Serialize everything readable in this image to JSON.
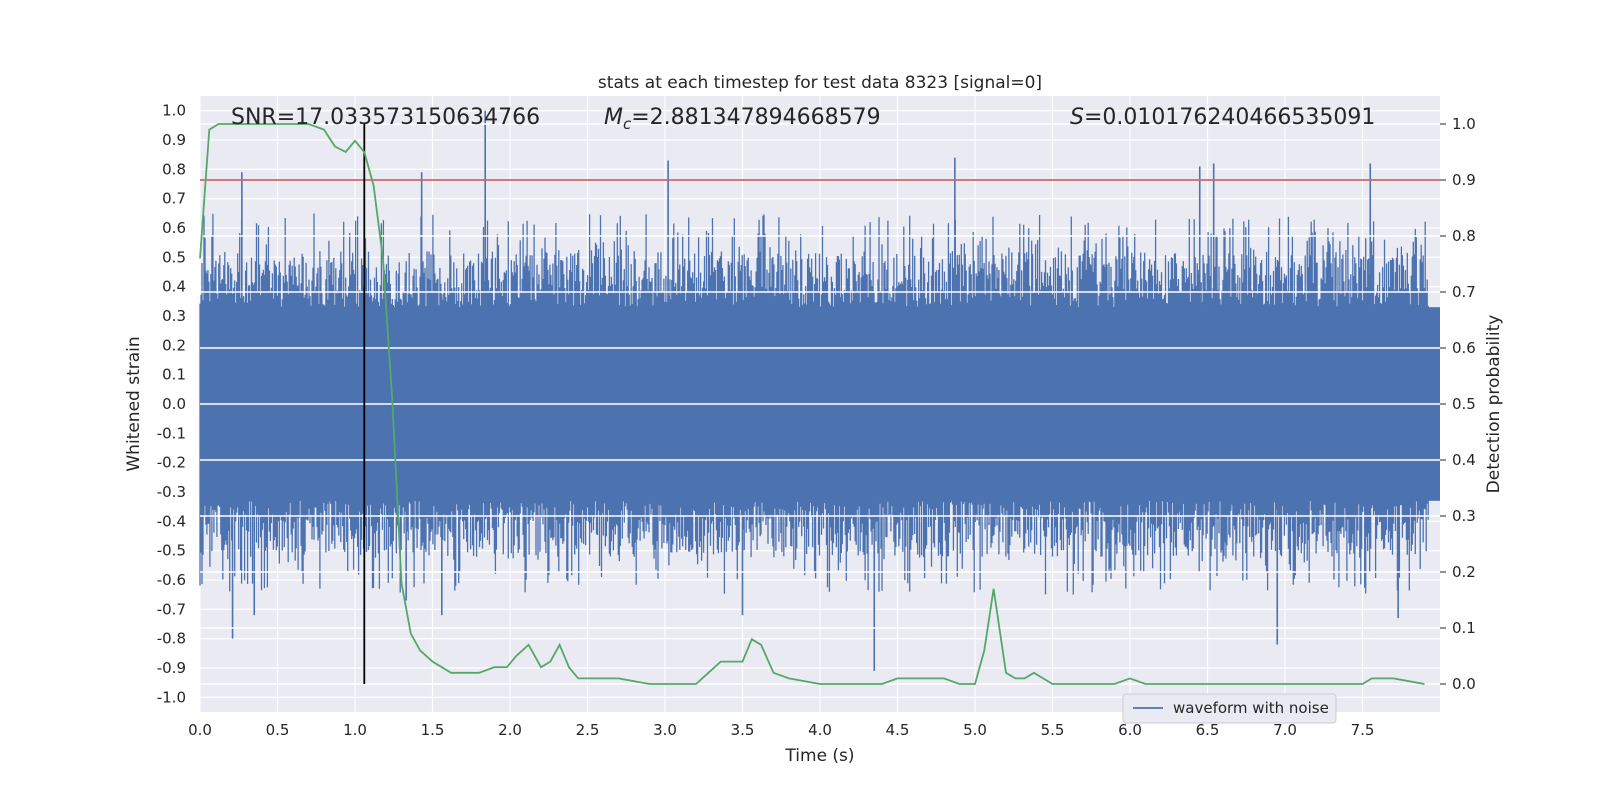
{
  "chart_data": {
    "type": "line",
    "title": "stats at each timestep for test data 8323 [signal=0]",
    "xlabel": "Time (s)",
    "ylabel": "Whitened strain",
    "y2label": "Detection probability",
    "xlim": [
      0.0,
      8.0
    ],
    "ylim": [
      -1.05,
      1.05
    ],
    "y2lim": [
      -0.05,
      1.05
    ],
    "x_ticks": [
      "0.0",
      "0.5",
      "1.0",
      "1.5",
      "2.0",
      "2.5",
      "3.0",
      "3.5",
      "4.0",
      "4.5",
      "5.0",
      "5.5",
      "6.0",
      "6.5",
      "7.0",
      "7.5"
    ],
    "y_ticks": [
      "1.0",
      "0.9",
      "0.8",
      "0.7",
      "0.6",
      "0.5",
      "0.4",
      "0.3",
      "0.2",
      "0.1",
      "0.0",
      "-0.1",
      "-0.2",
      "-0.3",
      "-0.4",
      "-0.5",
      "-0.6",
      "-0.7",
      "-0.8",
      "-0.9",
      "-1.0"
    ],
    "y2_ticks": [
      "1.0",
      "0.9",
      "0.8",
      "0.7",
      "0.6",
      "0.5",
      "0.4",
      "0.3",
      "0.2",
      "0.1",
      "0.0"
    ],
    "grid": true,
    "legend_position": "lower-right",
    "annotations": {
      "snr": "SNR=17.033573150634766",
      "mc_prefix": "M",
      "mc_sub": "c",
      "mc_value": "=2.881347894668579",
      "s_prefix": "S",
      "s_value": "=0.010176240466535091"
    },
    "threshold_line": {
      "y2": 0.9,
      "color": "#c44e52"
    },
    "detection_marker_x": 1.06,
    "series": [
      {
        "name": "waveform with noise",
        "color": "#4c72b0",
        "description_envelope": {
          "core_amplitude": 0.33,
          "typical_peak": 0.55,
          "max_peaks": [
            {
              "x": 0.27,
              "y": 0.79
            },
            {
              "x": 1.43,
              "y": 0.79
            },
            {
              "x": 1.84,
              "y": 1.0
            },
            {
              "x": 3.02,
              "y": 0.83
            },
            {
              "x": 4.87,
              "y": 0.84
            },
            {
              "x": 6.45,
              "y": 0.81
            },
            {
              "x": 6.54,
              "y": 0.82
            },
            {
              "x": 7.55,
              "y": 0.82
            }
          ],
          "min_peaks": [
            {
              "x": 0.21,
              "y": -0.8
            },
            {
              "x": 0.35,
              "y": -0.72
            },
            {
              "x": 1.33,
              "y": -0.67
            },
            {
              "x": 1.56,
              "y": -0.72
            },
            {
              "x": 3.5,
              "y": -0.72
            },
            {
              "x": 4.35,
              "y": -0.91
            },
            {
              "x": 6.95,
              "y": -0.82
            },
            {
              "x": 7.73,
              "y": -0.73
            }
          ]
        }
      },
      {
        "name": "",
        "color": "#55a868",
        "axis": "right",
        "x": [
          0.0,
          0.06,
          0.12,
          0.2,
          0.3,
          0.4,
          0.5,
          0.6,
          0.7,
          0.8,
          0.87,
          0.94,
          1.0,
          1.06,
          1.12,
          1.18,
          1.24,
          1.3,
          1.36,
          1.42,
          1.5,
          1.56,
          1.62,
          1.7,
          1.8,
          1.9,
          1.98,
          2.04,
          2.12,
          2.2,
          2.26,
          2.32,
          2.38,
          2.44,
          2.52,
          2.7,
          2.9,
          3.1,
          3.2,
          3.28,
          3.36,
          3.42,
          3.5,
          3.56,
          3.62,
          3.7,
          3.8,
          4.0,
          4.2,
          4.4,
          4.5,
          4.6,
          4.7,
          4.8,
          4.9,
          5.0,
          5.06,
          5.12,
          5.2,
          5.26,
          5.32,
          5.38,
          5.44,
          5.5,
          5.7,
          5.9,
          6.0,
          6.1,
          6.2,
          6.4,
          6.7,
          7.0,
          7.3,
          7.5,
          7.56,
          7.7,
          7.9
        ],
        "y": [
          0.76,
          0.99,
          1.0,
          1.0,
          1.0,
          1.0,
          1.0,
          1.0,
          1.0,
          0.99,
          0.96,
          0.95,
          0.97,
          0.95,
          0.89,
          0.76,
          0.51,
          0.18,
          0.09,
          0.06,
          0.04,
          0.03,
          0.02,
          0.02,
          0.02,
          0.03,
          0.03,
          0.05,
          0.07,
          0.03,
          0.04,
          0.07,
          0.03,
          0.01,
          0.01,
          0.01,
          0.0,
          0.0,
          0.0,
          0.02,
          0.04,
          0.04,
          0.04,
          0.08,
          0.07,
          0.02,
          0.01,
          0.0,
          0.0,
          0.0,
          0.01,
          0.01,
          0.01,
          0.01,
          0.0,
          0.0,
          0.06,
          0.17,
          0.02,
          0.01,
          0.01,
          0.02,
          0.01,
          0.0,
          0.0,
          0.0,
          0.01,
          0.0,
          0.0,
          0.0,
          0.0,
          0.0,
          0.0,
          0.0,
          0.01,
          0.01,
          0.0
        ]
      }
    ]
  }
}
